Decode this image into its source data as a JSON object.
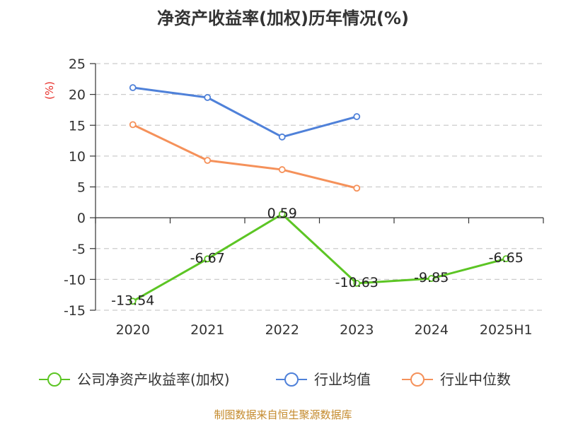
{
  "chart_data": {
    "type": "line",
    "title": "净资产收益率(加权)历年情况(%)",
    "unit_label": "(%)",
    "categories": [
      "2020",
      "2021",
      "2022",
      "2023",
      "2024",
      "2025H1"
    ],
    "y_ticks": [
      "25",
      "20",
      "15",
      "10",
      "5",
      "0",
      "-5",
      "-10",
      "-15"
    ],
    "ylim": [
      -15,
      25
    ],
    "grid": true,
    "legend_position": "bottom",
    "series": [
      {
        "name": "公司净资产收益率(加权)",
        "color": "#5cc524",
        "values": [
          -13.54,
          -6.67,
          0.59,
          -10.63,
          -9.85,
          -6.65
        ],
        "labels": [
          "-13.54",
          "-6.67",
          "0.59",
          "-10.63",
          "-9.85",
          "-6.65"
        ]
      },
      {
        "name": "行业均值",
        "color": "#4f81d9",
        "values": [
          21.1,
          19.5,
          13.1,
          16.4,
          null,
          null
        ]
      },
      {
        "name": "行业中位数",
        "color": "#f5915a",
        "values": [
          15.1,
          9.3,
          7.8,
          4.8,
          null,
          null
        ]
      }
    ],
    "source": "制图数据来自恒生聚源数据库",
    "colors": {
      "unit": "#e8302a",
      "source": "#c48a2c",
      "grid": "#cccccc",
      "axis": "#333333"
    }
  }
}
